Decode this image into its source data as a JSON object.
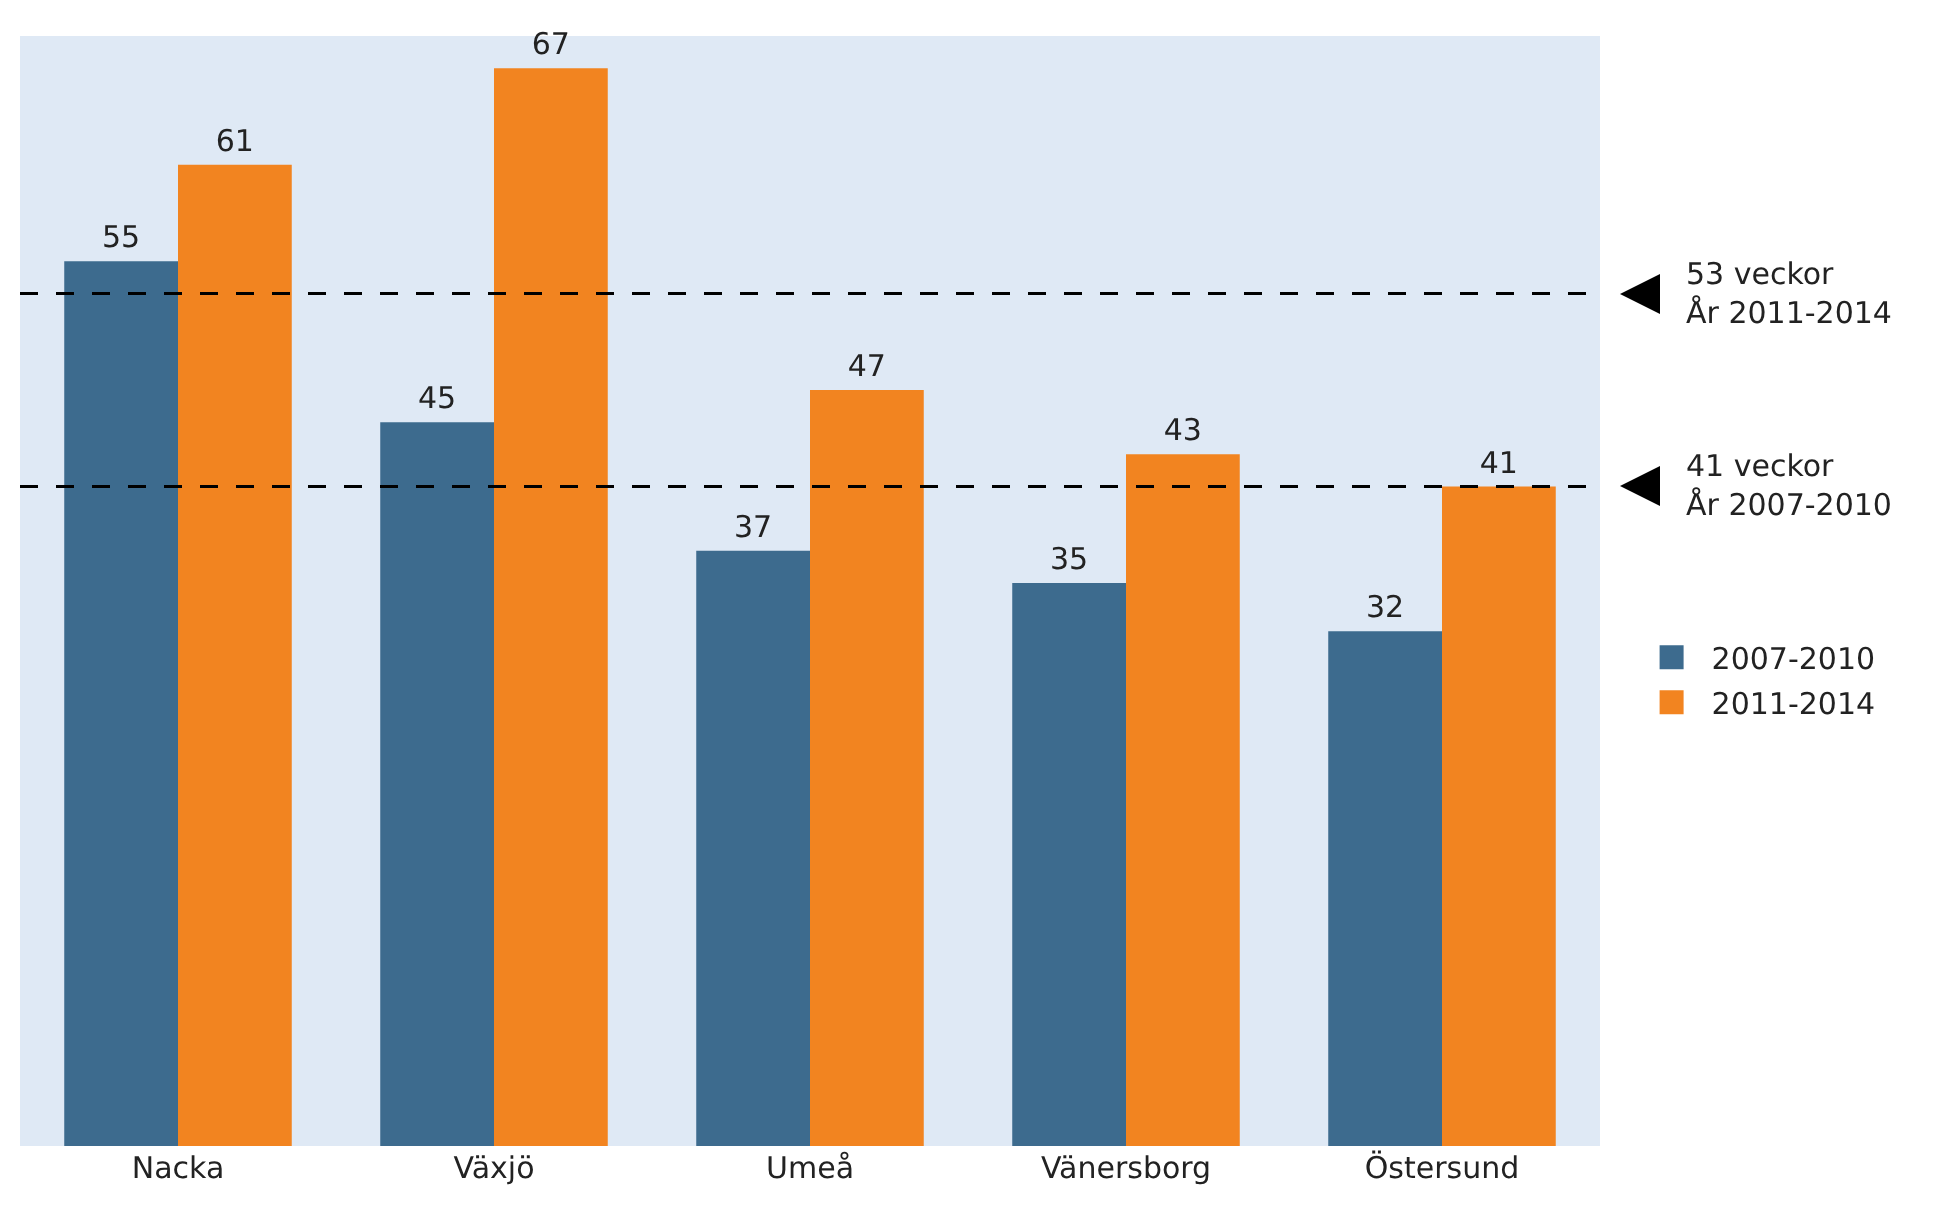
{
  "chart_data": {
    "type": "bar",
    "categories": [
      "Nacka",
      "Växjö",
      "Umeå",
      "Vänersborg",
      "Östersund"
    ],
    "series": [
      {
        "name": "2007-2010",
        "color": "#3d6b8e",
        "values": [
          55,
          45,
          37,
          35,
          32
        ]
      },
      {
        "name": "2011-2014",
        "color": "#f28420",
        "values": [
          61,
          67,
          47,
          43,
          41
        ]
      }
    ],
    "data_labels": true,
    "legend": "right",
    "grid": false,
    "tick_labels": "x",
    "ref_lines": [
      {
        "axis": "y",
        "value": 53,
        "label": "53 veckor\nÅr 2011-2014",
        "line_style": "dashed",
        "color": "#000000"
      },
      {
        "axis": "y",
        "value": 41,
        "label": "41 veckor\nÅr 2007-2010",
        "line_style": "dashed",
        "color": "#000000"
      }
    ]
  }
}
